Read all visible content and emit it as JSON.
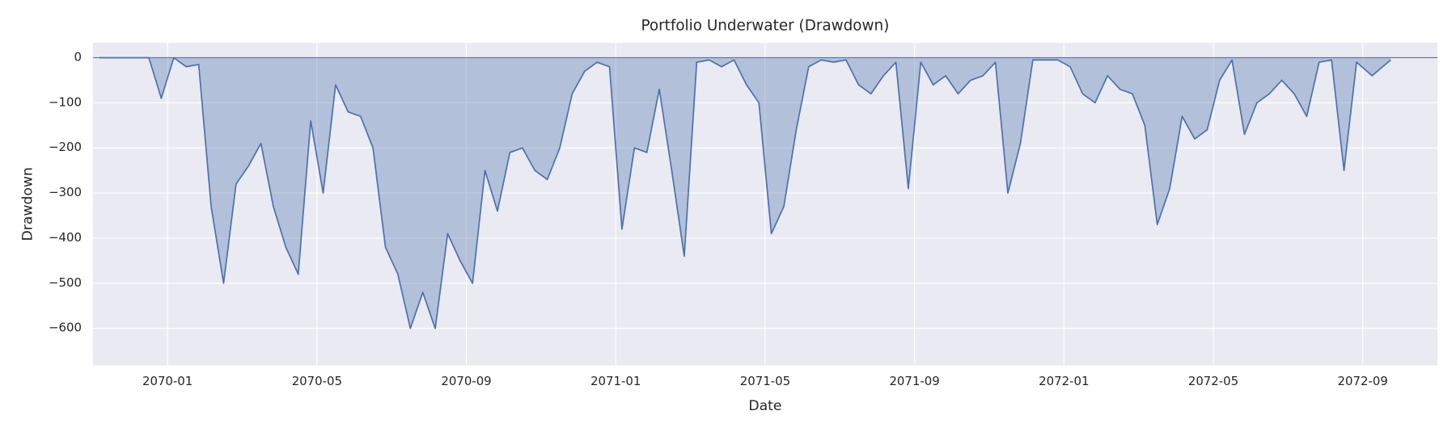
{
  "chart_data": {
    "type": "area",
    "title": "Portfolio Underwater (Drawdown)",
    "x_label": "Date",
    "y_label": "Drawdown",
    "color": "#4c72b0",
    "grid": true,
    "x": [
      "2069-11",
      "2069-11",
      "2069-11",
      "2069-12",
      "2069-12",
      "2069-12",
      "2070-01",
      "2070-01",
      "2070-01",
      "2070-02",
      "2070-02",
      "2070-02",
      "2070-03",
      "2070-03",
      "2070-03",
      "2070-04",
      "2070-04",
      "2070-04",
      "2070-05",
      "2070-05",
      "2070-05",
      "2070-06",
      "2070-06",
      "2070-06",
      "2070-07",
      "2070-07",
      "2070-07",
      "2070-08",
      "2070-08",
      "2070-08",
      "2070-09",
      "2070-09",
      "2070-09",
      "2070-10",
      "2070-10",
      "2070-10",
      "2070-11",
      "2070-11",
      "2070-11",
      "2070-12",
      "2070-12",
      "2070-12",
      "2071-01",
      "2071-01",
      "2071-01",
      "2071-02",
      "2071-02",
      "2071-02",
      "2071-03",
      "2071-03",
      "2071-03",
      "2071-04",
      "2071-04",
      "2071-04",
      "2071-05",
      "2071-05",
      "2071-05",
      "2071-06",
      "2071-06",
      "2071-06",
      "2071-07",
      "2071-07",
      "2071-07",
      "2071-08",
      "2071-08",
      "2071-08",
      "2071-09",
      "2071-09",
      "2071-09",
      "2071-10",
      "2071-10",
      "2071-10",
      "2071-11",
      "2071-11",
      "2071-11",
      "2071-12",
      "2071-12",
      "2071-12",
      "2072-01",
      "2072-01",
      "2072-01",
      "2072-02",
      "2072-02",
      "2072-02",
      "2072-03",
      "2072-03",
      "2072-03",
      "2072-04",
      "2072-04",
      "2072-04",
      "2072-05",
      "2072-05",
      "2072-05",
      "2072-06",
      "2072-06",
      "2072-06",
      "2072-07",
      "2072-07",
      "2072-07",
      "2072-08",
      "2072-08",
      "2072-08",
      "2072-09",
      "2072-09"
    ],
    "values": [
      0,
      0,
      0,
      0,
      0,
      -90,
      0,
      -20,
      -15,
      -330,
      -500,
      -280,
      -240,
      -190,
      -330,
      -420,
      -480,
      -140,
      -300,
      -60,
      -120,
      -130,
      -200,
      -420,
      -480,
      -600,
      -520,
      -600,
      -390,
      -450,
      -500,
      -250,
      -340,
      -210,
      -200,
      -250,
      -270,
      -200,
      -80,
      -30,
      -10,
      -20,
      -380,
      -200,
      -210,
      -70,
      -250,
      -440,
      -10,
      -5,
      -20,
      -5,
      -60,
      -100,
      -390,
      -330,
      -160,
      -20,
      -5,
      -10,
      -5,
      -60,
      -80,
      -40,
      -10,
      -290,
      -10,
      -60,
      -40,
      -80,
      -50,
      -40,
      -10,
      -300,
      -190,
      -5,
      -5,
      -5,
      -20,
      -80,
      -100,
      -40,
      -70,
      -80,
      -150,
      -370,
      -290,
      -130,
      -180,
      -160,
      -50,
      -5,
      -170,
      -100,
      -80,
      -50,
      -80,
      -130,
      -10,
      -5,
      -250,
      -10,
      -40,
      -5
    ],
    "xlim": [
      "2069-11",
      "2072-11"
    ],
    "xticks": [
      "2070-01",
      "2070-05",
      "2070-09",
      "2071-01",
      "2071-05",
      "2071-09",
      "2072-01",
      "2072-05",
      "2072-09"
    ],
    "ylim": [
      -682,
      33
    ],
    "yticks": [
      0,
      {
        "value": -100,
        "label": "−100"
      },
      {
        "value": -200,
        "label": "−200"
      },
      {
        "value": -300,
        "label": "−300"
      },
      {
        "value": -400,
        "label": "−400"
      },
      {
        "value": -500,
        "label": "−500"
      },
      {
        "value": -600,
        "label": "−600"
      }
    ]
  }
}
